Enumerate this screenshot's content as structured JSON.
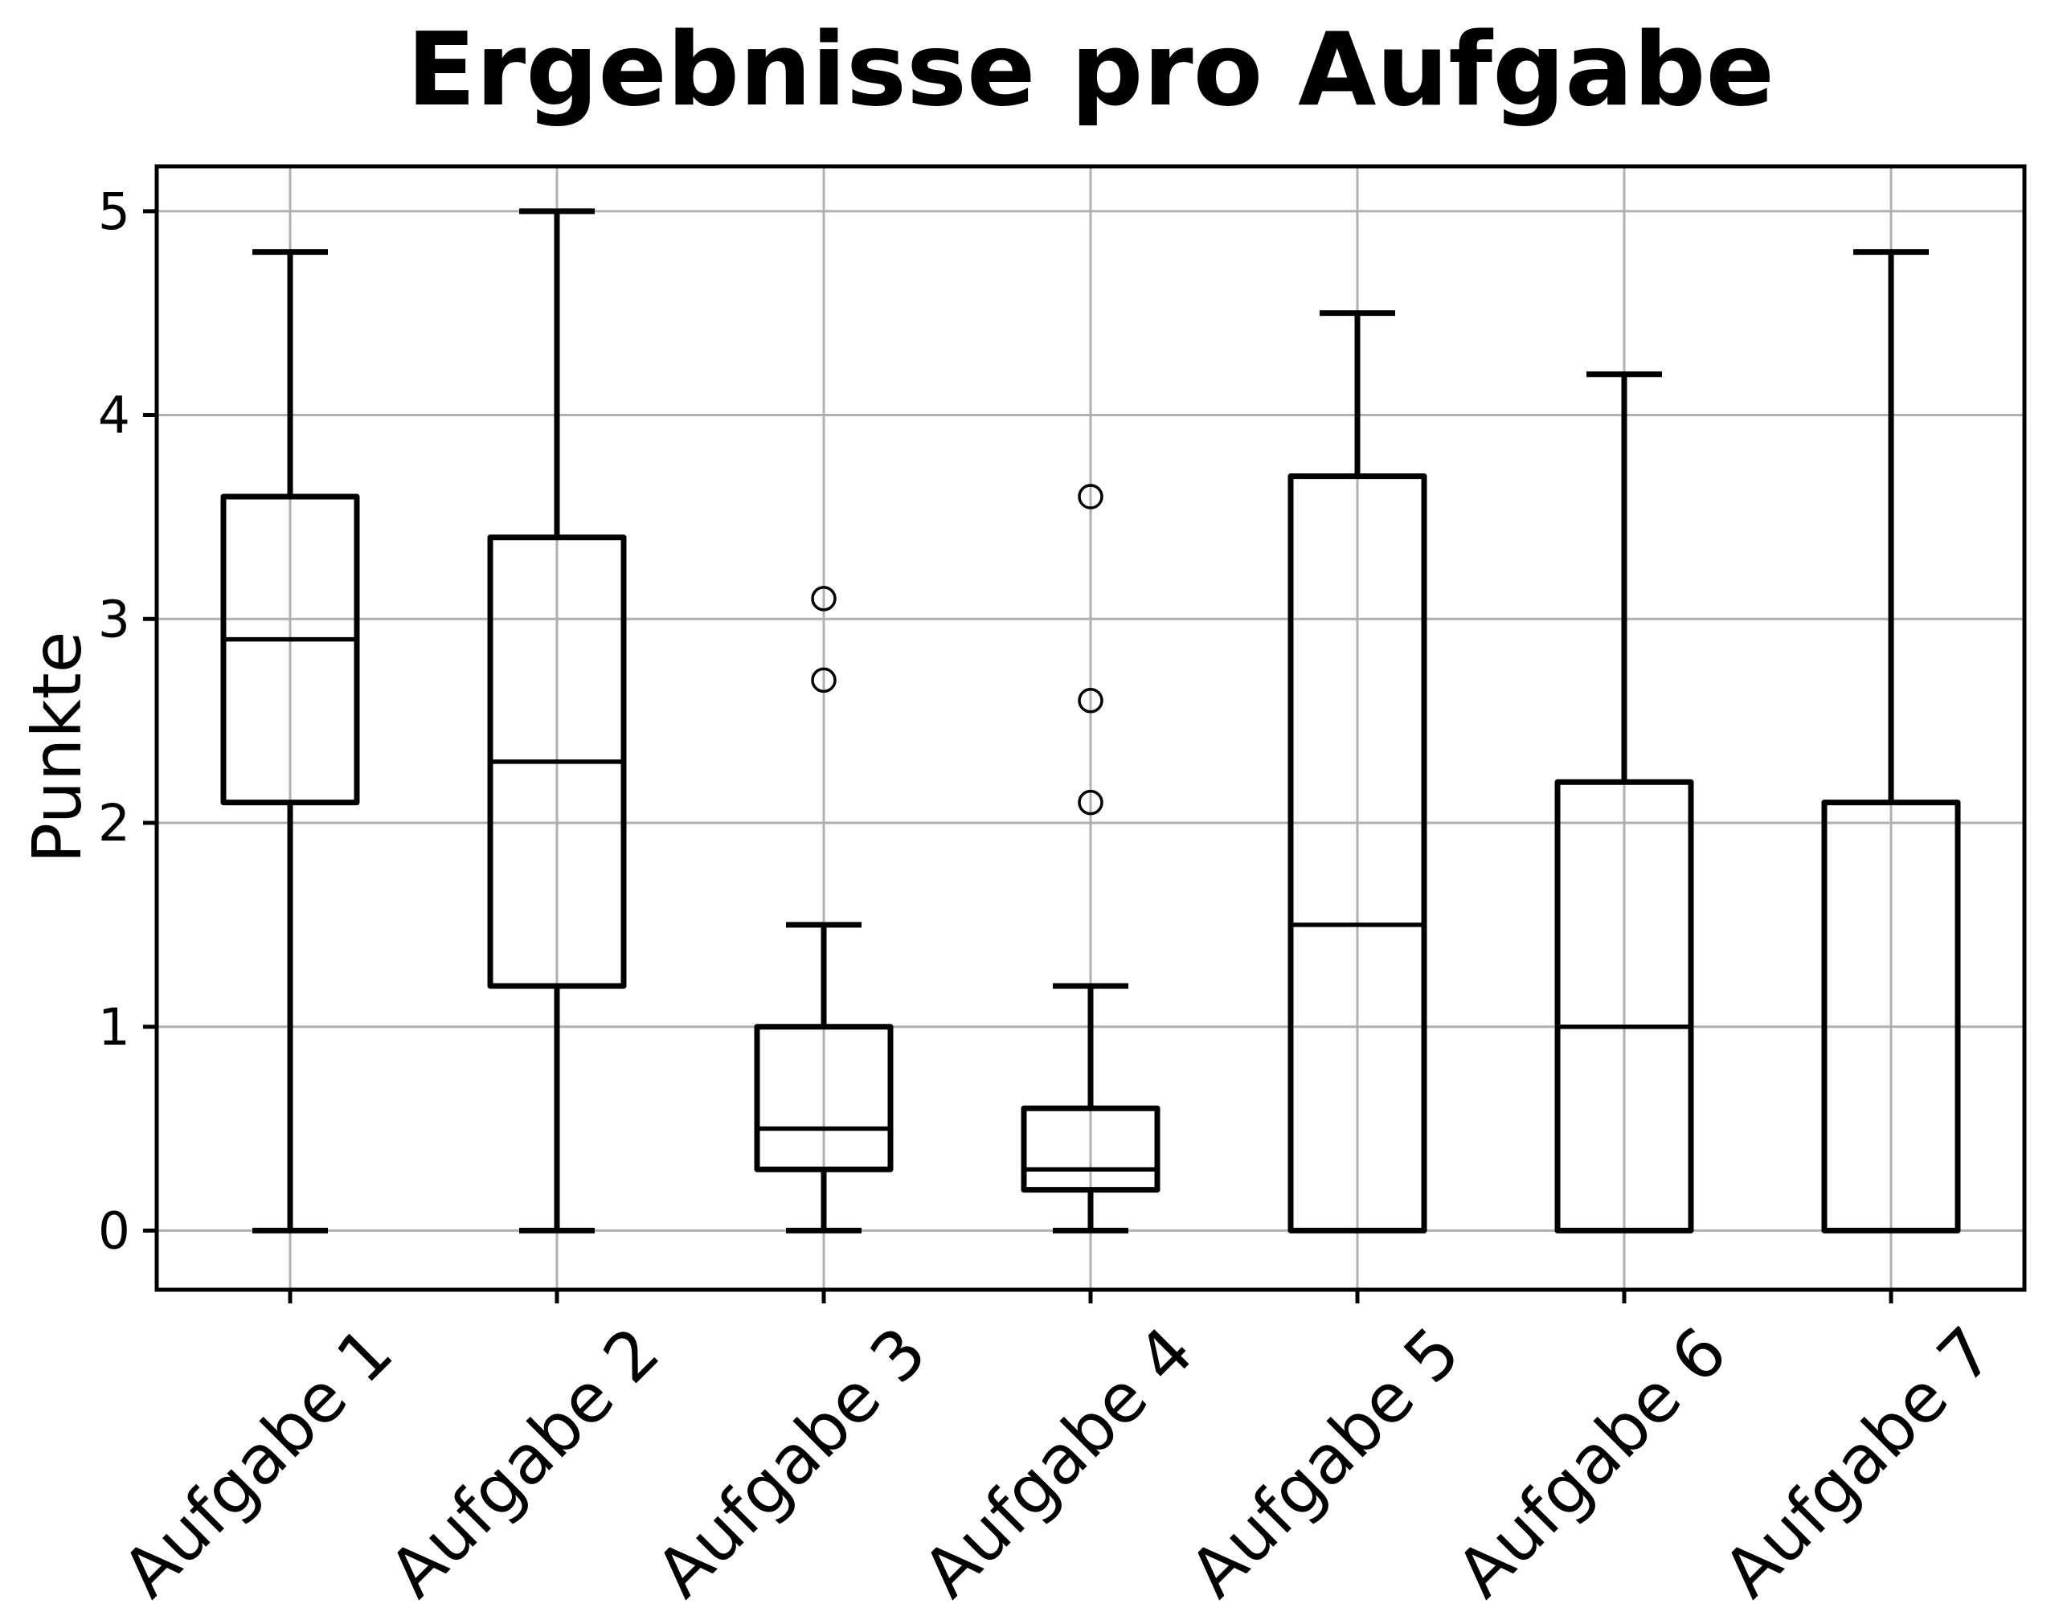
{
  "page": {
    "background_color": "#ffffff"
  },
  "chart_data": {
    "type": "boxplot",
    "title": "Ergebnisse pro Aufgabe",
    "xlabel": "",
    "ylabel": "Punkte",
    "categories": [
      "Aufgabe 1",
      "Aufgabe 2",
      "Aufgabe 3",
      "Aufgabe 4",
      "Aufgabe 5",
      "Aufgabe 6",
      "Aufgabe 7"
    ],
    "yticks": [
      0,
      1,
      2,
      3,
      4,
      5
    ],
    "ylim": [
      -0.29,
      5.22
    ],
    "xlim": [
      0.5,
      7.5
    ],
    "grid": true,
    "legend": false,
    "orientation": "vertical",
    "colors": {
      "line": "#000000",
      "grid": "#b0b0b0",
      "background": "#ffffff",
      "text": "#000000"
    },
    "series": [
      {
        "label": "Aufgabe 1",
        "whislo": 0.0,
        "q1": 2.1,
        "med": 2.9,
        "q3": 3.6,
        "whishi": 4.8,
        "fliers": []
      },
      {
        "label": "Aufgabe 2",
        "whislo": 0.0,
        "q1": 1.2,
        "med": 2.3,
        "q3": 3.4,
        "whishi": 5.0,
        "fliers": []
      },
      {
        "label": "Aufgabe 3",
        "whislo": 0.0,
        "q1": 0.3,
        "med": 0.5,
        "q3": 1.0,
        "whishi": 1.5,
        "fliers": [
          2.7,
          3.1
        ]
      },
      {
        "label": "Aufgabe 4",
        "whislo": 0.0,
        "q1": 0.2,
        "med": 0.3,
        "q3": 0.6,
        "whishi": 1.2,
        "fliers": [
          2.1,
          2.6,
          3.6
        ]
      },
      {
        "label": "Aufgabe 5",
        "whislo": 0.0,
        "q1": 0.0,
        "med": 1.5,
        "q3": 3.7,
        "whishi": 4.5,
        "fliers": []
      },
      {
        "label": "Aufgabe 6",
        "whislo": 0.0,
        "q1": 0.0,
        "med": 1.0,
        "q3": 2.2,
        "whishi": 4.2,
        "fliers": []
      },
      {
        "label": "Aufgabe 7",
        "whislo": 0.0,
        "q1": 0.0,
        "med": 0.0,
        "q3": 2.1,
        "whishi": 4.8,
        "fliers": []
      }
    ]
  }
}
